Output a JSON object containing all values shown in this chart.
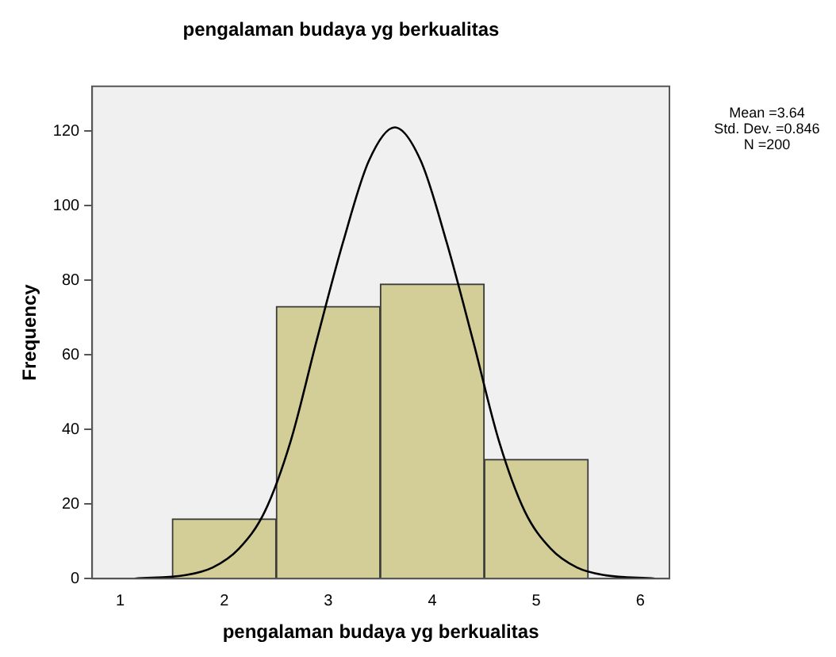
{
  "chart_data": {
    "type": "histogram",
    "title": "pengalaman budaya yg berkualitas",
    "xlabel": "pengalaman budaya yg berkualitas",
    "ylabel": "Frequency",
    "bins": [
      1.5,
      2.5,
      3.5,
      4.5,
      5.5
    ],
    "values": [
      16,
      73,
      79,
      32
    ],
    "color": "#d3ce97",
    "series": [
      {
        "type": "line",
        "color": "#000000",
        "x": [
          1.14,
          1.64,
          1.89,
          2.14,
          2.39,
          2.64,
          2.89,
          3.14,
          3.39,
          3.64,
          3.89,
          4.14,
          4.39,
          4.64,
          4.89,
          5.14,
          5.39,
          5.64,
          6.14
        ],
        "values": [
          0,
          1,
          3,
          8,
          18,
          37,
          64,
          90,
          112,
          121,
          112,
          90,
          64,
          37,
          18,
          8,
          3,
          1,
          0
        ]
      }
    ],
    "xlim": [
      0.73,
      6.28
    ],
    "ylim": [
      0,
      132
    ],
    "xticks": [
      1,
      2,
      3,
      4,
      5,
      6
    ],
    "yticks": [
      0,
      20,
      40,
      60,
      80,
      100,
      120
    ],
    "grid": false,
    "legend": false,
    "marker": "none",
    "line_style": "solid",
    "annotations": [
      "Mean =3.64",
      "Std. Dev. =0.846",
      "N =200"
    ]
  }
}
